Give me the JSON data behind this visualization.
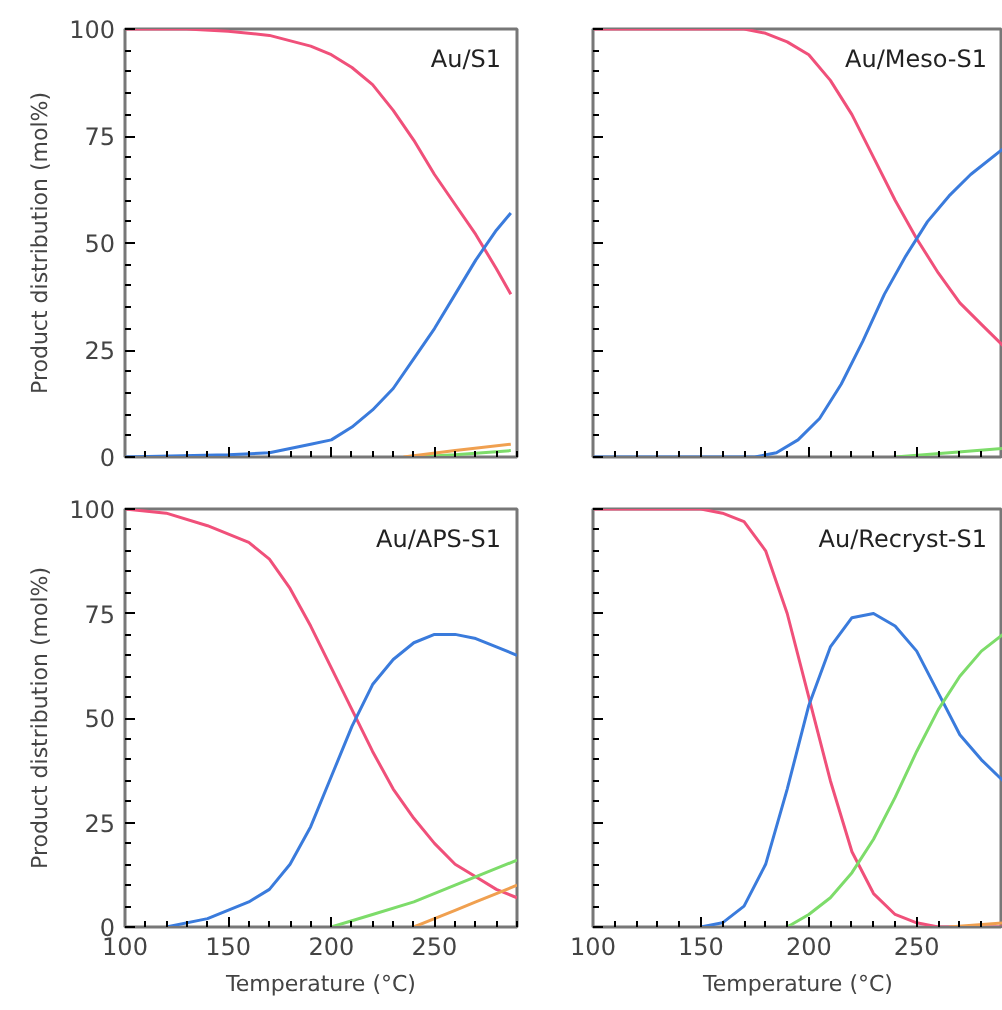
{
  "chart_data": [
    {
      "type": "line",
      "title": "Au/S1",
      "ylabel": "Product distribution (mol%)",
      "xlim": [
        100,
        290
      ],
      "ylim": [
        0,
        100
      ],
      "xticks": [
        100,
        150,
        200,
        250
      ],
      "yticks": [
        0,
        25,
        50,
        75,
        100
      ],
      "tick_labels": "y",
      "grid": false,
      "marker": "none",
      "line_style": "solid",
      "series": [
        {
          "color": "#f0507a",
          "x": [
            100,
            130,
            150,
            170,
            190,
            200,
            210,
            220,
            230,
            240,
            250,
            260,
            270,
            280,
            287
          ],
          "values": [
            100,
            100,
            99.5,
            98.5,
            96,
            94,
            91,
            87,
            81,
            74,
            66,
            59,
            52,
            44,
            38
          ]
        },
        {
          "color": "#3a7bdc",
          "x": [
            100,
            150,
            170,
            190,
            200,
            210,
            220,
            230,
            240,
            250,
            260,
            270,
            280,
            287
          ],
          "values": [
            0,
            0.5,
            1,
            3,
            4,
            7,
            11,
            16,
            23,
            30,
            38,
            46,
            53,
            57
          ]
        },
        {
          "color": "#7ddc6a",
          "x": [
            240,
            260,
            287
          ],
          "values": [
            0,
            0.5,
            1.5
          ]
        },
        {
          "color": "#f0a050",
          "x": [
            235,
            260,
            287
          ],
          "values": [
            0,
            1.5,
            3
          ]
        }
      ]
    },
    {
      "type": "line",
      "title": "Au/Meso-S1",
      "xlim": [
        100,
        290
      ],
      "ylim": [
        0,
        100
      ],
      "xticks": [
        100,
        150,
        200,
        250
      ],
      "yticks": [
        0,
        25,
        50,
        75,
        100
      ],
      "tick_labels": false,
      "grid": false,
      "marker": "none",
      "line_style": "solid",
      "series": [
        {
          "color": "#f0507a",
          "x": [
            100,
            170,
            180,
            190,
            200,
            210,
            220,
            230,
            240,
            250,
            260,
            270,
            280,
            290
          ],
          "values": [
            100,
            100,
            99,
            97,
            94,
            88,
            80,
            70,
            60,
            51,
            43,
            36,
            31,
            26
          ]
        },
        {
          "color": "#3a7bdc",
          "x": [
            100,
            175,
            185,
            195,
            205,
            215,
            225,
            235,
            245,
            255,
            265,
            275,
            290
          ],
          "values": [
            0,
            0,
            1,
            4,
            9,
            17,
            27,
            38,
            47,
            55,
            61,
            66,
            72
          ]
        },
        {
          "color": "#7ddc6a",
          "x": [
            240,
            265,
            290
          ],
          "values": [
            0,
            1,
            2
          ]
        }
      ]
    },
    {
      "type": "line",
      "title": "Au/APS-S1",
      "xlabel": "Temperature (°C)",
      "ylabel": "Product distribution (mol%)",
      "xlim": [
        100,
        290
      ],
      "ylim": [
        0,
        100
      ],
      "xticks": [
        100,
        150,
        200,
        250
      ],
      "yticks": [
        0,
        25,
        50,
        75,
        100
      ],
      "grid": false,
      "marker": "none",
      "line_style": "solid",
      "series": [
        {
          "color": "#f0507a",
          "x": [
            100,
            120,
            140,
            160,
            170,
            180,
            190,
            200,
            210,
            220,
            230,
            240,
            250,
            260,
            270,
            280,
            290
          ],
          "values": [
            100,
            99,
            96,
            92,
            88,
            81,
            72,
            62,
            52,
            42,
            33,
            26,
            20,
            15,
            12,
            9,
            7
          ]
        },
        {
          "color": "#3a7bdc",
          "x": [
            120,
            140,
            160,
            170,
            180,
            190,
            200,
            210,
            220,
            230,
            240,
            250,
            260,
            270,
            280,
            290
          ],
          "values": [
            0,
            2,
            6,
            9,
            15,
            24,
            36,
            48,
            58,
            64,
            68,
            70,
            70,
            69,
            67,
            65
          ]
        },
        {
          "color": "#7ddc6a",
          "x": [
            200,
            220,
            240,
            260,
            280,
            290
          ],
          "values": [
            0,
            3,
            6,
            10,
            14,
            16
          ]
        },
        {
          "color": "#f0a050",
          "x": [
            240,
            250,
            260,
            270,
            280,
            290
          ],
          "values": [
            0,
            2,
            4,
            6,
            8,
            10
          ]
        }
      ]
    },
    {
      "type": "line",
      "title": "Au/Recryst-S1",
      "xlabel": "Temperature (°C)",
      "xlim": [
        100,
        290
      ],
      "ylim": [
        0,
        100
      ],
      "xticks": [
        100,
        150,
        200,
        250
      ],
      "yticks": [
        0,
        25,
        50,
        75,
        100
      ],
      "tick_labels": "x",
      "grid": false,
      "marker": "none",
      "line_style": "solid",
      "series": [
        {
          "color": "#f0507a",
          "x": [
            100,
            150,
            160,
            170,
            180,
            190,
            200,
            210,
            220,
            230,
            240,
            250,
            260,
            290
          ],
          "values": [
            100,
            100,
            99,
            97,
            90,
            75,
            55,
            35,
            18,
            8,
            3,
            1,
            0,
            0
          ]
        },
        {
          "color": "#3a7bdc",
          "x": [
            150,
            160,
            170,
            180,
            190,
            200,
            210,
            220,
            230,
            240,
            250,
            260,
            270,
            280,
            290
          ],
          "values": [
            0,
            1,
            5,
            15,
            33,
            53,
            67,
            74,
            75,
            72,
            66,
            56,
            46,
            40,
            35
          ]
        },
        {
          "color": "#7ddc6a",
          "x": [
            190,
            200,
            210,
            220,
            230,
            240,
            250,
            260,
            270,
            280,
            290
          ],
          "values": [
            0,
            3,
            7,
            13,
            21,
            31,
            42,
            52,
            60,
            66,
            70
          ]
        },
        {
          "color": "#f0a050",
          "x": [
            265,
            290
          ],
          "values": [
            0,
            1
          ]
        }
      ]
    }
  ]
}
